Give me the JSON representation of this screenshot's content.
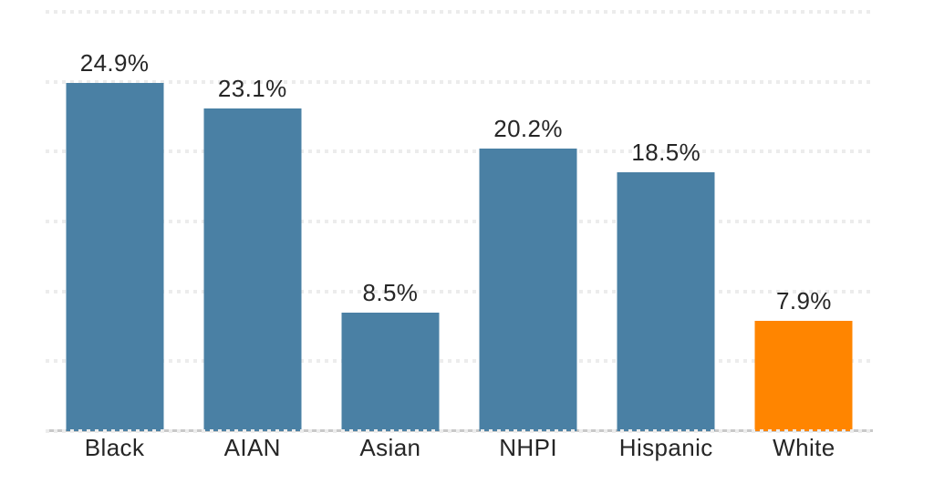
{
  "chart_data": {
    "type": "bar",
    "title": "",
    "xlabel": "",
    "ylabel": "",
    "categories": [
      "Black",
      "AIAN",
      "Asian",
      "NHPI",
      "Hispanic",
      "White"
    ],
    "values": [
      24.9,
      23.1,
      8.5,
      20.2,
      18.5,
      7.9
    ],
    "value_labels": [
      "24.9%",
      "23.1%",
      "8.5%",
      "20.2%",
      "18.5%",
      "7.9%"
    ],
    "bar_colors": [
      "#4a80a4",
      "#4a80a4",
      "#4a80a4",
      "#4a80a4",
      "#4a80a4",
      "#ff8500"
    ],
    "ylim": [
      0,
      30
    ],
    "gridline_step": 5,
    "grid": "dotted-horizontal",
    "legend": "none",
    "y_tick_labels_visible": false,
    "colors": {
      "bar_default": "#4a80a4",
      "bar_highlight": "#ff8500",
      "gridline": "#ececec",
      "axis_line": "#c9c9c9",
      "label_text": "#262626"
    }
  }
}
